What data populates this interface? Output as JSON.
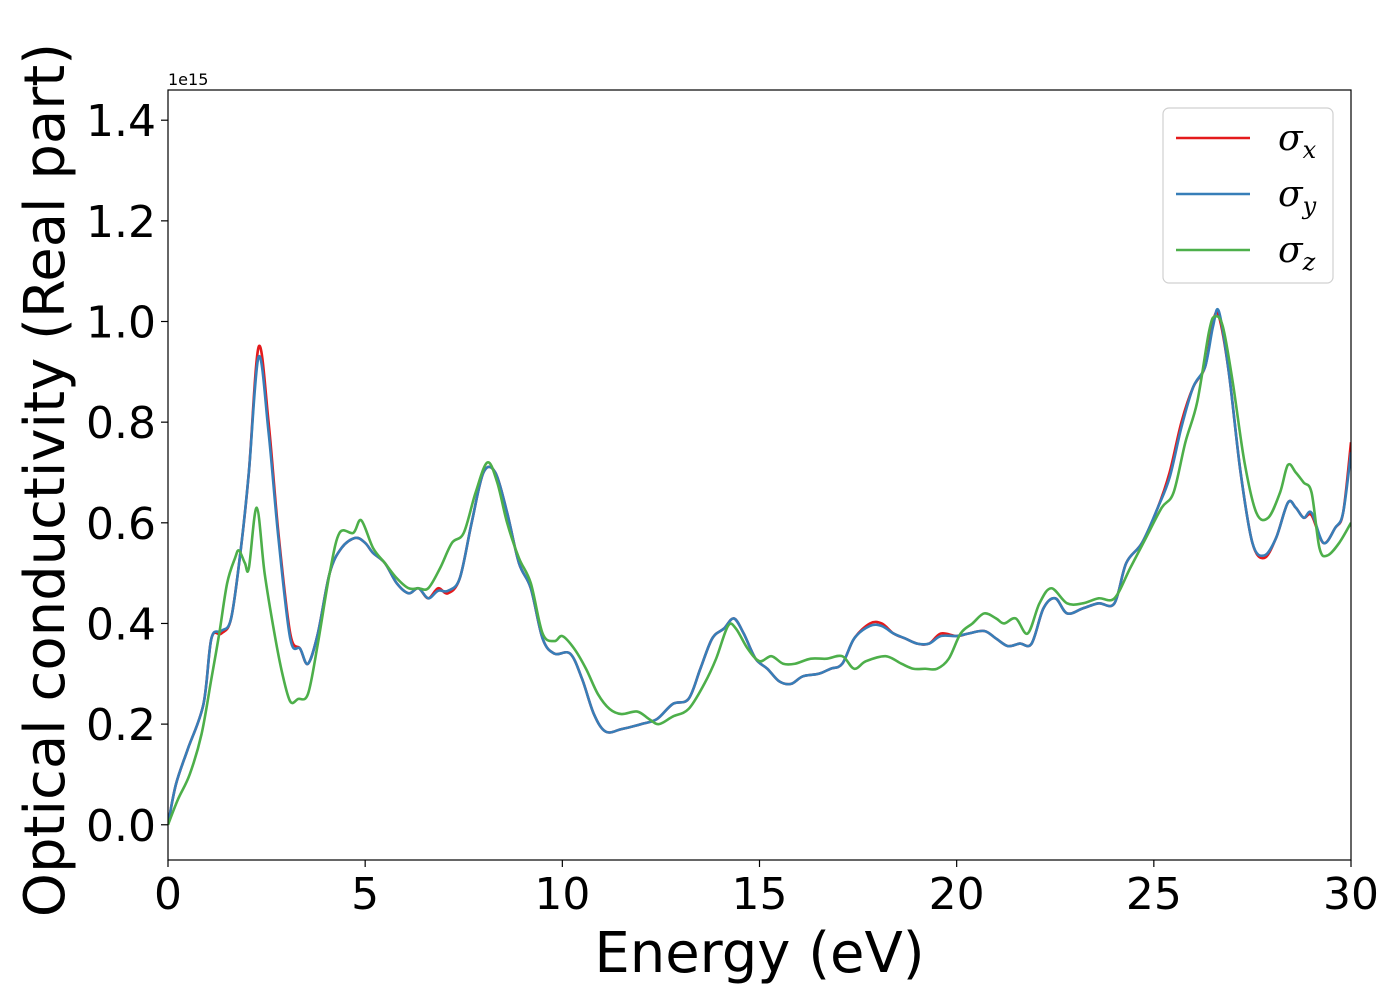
{
  "chart_data": {
    "type": "line",
    "xlabel": "Energy (eV)",
    "ylabel": "Optical conductivity (Real part)",
    "y_offset_label": "1e15",
    "xlim": [
      0,
      30
    ],
    "ylim": [
      -0.07,
      1.46
    ],
    "xticks": [
      0,
      5,
      10,
      15,
      20,
      25,
      30
    ],
    "xtick_labels": [
      "0",
      "5",
      "10",
      "15",
      "20",
      "25",
      "30"
    ],
    "yticks": [
      0.0,
      0.2,
      0.4,
      0.6,
      0.8,
      1.0,
      1.2,
      1.4
    ],
    "ytick_labels": [
      "0.0",
      "0.2",
      "0.4",
      "0.6",
      "0.8",
      "1.0",
      "1.2",
      "1.4"
    ],
    "legend_position": "top-right",
    "grid": false,
    "series": [
      {
        "name": "σx",
        "symbol": "σ",
        "subscript": "x",
        "color": "#e41a1c",
        "points": [
          [
            0,
            0.0
          ],
          [
            0.2,
            0.08
          ],
          [
            0.5,
            0.15
          ],
          [
            0.9,
            0.24
          ],
          [
            1.1,
            0.37
          ],
          [
            1.35,
            0.38
          ],
          [
            1.6,
            0.41
          ],
          [
            1.85,
            0.55
          ],
          [
            2.05,
            0.7
          ],
          [
            2.3,
            0.95
          ],
          [
            2.55,
            0.8
          ],
          [
            2.8,
            0.58
          ],
          [
            3.1,
            0.38
          ],
          [
            3.35,
            0.35
          ],
          [
            3.55,
            0.32
          ],
          [
            3.8,
            0.38
          ],
          [
            4.1,
            0.5
          ],
          [
            4.4,
            0.55
          ],
          [
            4.75,
            0.57
          ],
          [
            5.0,
            0.56
          ],
          [
            5.2,
            0.54
          ],
          [
            5.5,
            0.52
          ],
          [
            5.8,
            0.48
          ],
          [
            6.1,
            0.46
          ],
          [
            6.35,
            0.47
          ],
          [
            6.6,
            0.45
          ],
          [
            6.85,
            0.47
          ],
          [
            7.1,
            0.46
          ],
          [
            7.4,
            0.49
          ],
          [
            7.7,
            0.6
          ],
          [
            8.0,
            0.7
          ],
          [
            8.3,
            0.7
          ],
          [
            8.6,
            0.62
          ],
          [
            8.9,
            0.52
          ],
          [
            9.2,
            0.47
          ],
          [
            9.5,
            0.37
          ],
          [
            9.8,
            0.34
          ],
          [
            10.2,
            0.34
          ],
          [
            10.5,
            0.29
          ],
          [
            10.8,
            0.22
          ],
          [
            11.1,
            0.185
          ],
          [
            11.5,
            0.19
          ],
          [
            12.0,
            0.2
          ],
          [
            12.4,
            0.21
          ],
          [
            12.8,
            0.24
          ],
          [
            13.2,
            0.25
          ],
          [
            13.5,
            0.31
          ],
          [
            13.8,
            0.37
          ],
          [
            14.1,
            0.39
          ],
          [
            14.35,
            0.41
          ],
          [
            14.6,
            0.38
          ],
          [
            14.9,
            0.33
          ],
          [
            15.2,
            0.31
          ],
          [
            15.5,
            0.285
          ],
          [
            15.8,
            0.28
          ],
          [
            16.1,
            0.295
          ],
          [
            16.5,
            0.3
          ],
          [
            16.8,
            0.31
          ],
          [
            17.1,
            0.32
          ],
          [
            17.4,
            0.37
          ],
          [
            17.8,
            0.4
          ],
          [
            18.1,
            0.4
          ],
          [
            18.4,
            0.38
          ],
          [
            18.7,
            0.37
          ],
          [
            19.0,
            0.36
          ],
          [
            19.3,
            0.36
          ],
          [
            19.6,
            0.38
          ],
          [
            20.0,
            0.375
          ],
          [
            20.3,
            0.38
          ],
          [
            20.7,
            0.385
          ],
          [
            21.0,
            0.37
          ],
          [
            21.3,
            0.355
          ],
          [
            21.6,
            0.36
          ],
          [
            21.9,
            0.36
          ],
          [
            22.2,
            0.43
          ],
          [
            22.5,
            0.45
          ],
          [
            22.8,
            0.42
          ],
          [
            23.2,
            0.43
          ],
          [
            23.6,
            0.44
          ],
          [
            24.0,
            0.44
          ],
          [
            24.3,
            0.52
          ],
          [
            24.7,
            0.56
          ],
          [
            25.1,
            0.63
          ],
          [
            25.4,
            0.7
          ],
          [
            25.7,
            0.8
          ],
          [
            26.0,
            0.87
          ],
          [
            26.3,
            0.91
          ],
          [
            26.5,
            1.0
          ],
          [
            26.65,
            1.01
          ],
          [
            26.9,
            0.9
          ],
          [
            27.2,
            0.7
          ],
          [
            27.5,
            0.56
          ],
          [
            27.8,
            0.53
          ],
          [
            28.1,
            0.57
          ],
          [
            28.4,
            0.64
          ],
          [
            28.6,
            0.63
          ],
          [
            28.8,
            0.61
          ],
          [
            29.0,
            0.615
          ],
          [
            29.3,
            0.56
          ],
          [
            29.6,
            0.59
          ],
          [
            29.8,
            0.62
          ],
          [
            30.0,
            0.76
          ]
        ]
      },
      {
        "name": "σy",
        "symbol": "σ",
        "subscript": "y",
        "color": "#377eb8",
        "points": [
          [
            0,
            0.0
          ],
          [
            0.2,
            0.08
          ],
          [
            0.5,
            0.15
          ],
          [
            0.9,
            0.24
          ],
          [
            1.1,
            0.37
          ],
          [
            1.35,
            0.385
          ],
          [
            1.6,
            0.41
          ],
          [
            1.85,
            0.55
          ],
          [
            2.05,
            0.7
          ],
          [
            2.3,
            0.93
          ],
          [
            2.55,
            0.78
          ],
          [
            2.8,
            0.57
          ],
          [
            3.1,
            0.37
          ],
          [
            3.35,
            0.35
          ],
          [
            3.55,
            0.32
          ],
          [
            3.8,
            0.38
          ],
          [
            4.1,
            0.5
          ],
          [
            4.4,
            0.55
          ],
          [
            4.75,
            0.57
          ],
          [
            5.0,
            0.56
          ],
          [
            5.2,
            0.54
          ],
          [
            5.5,
            0.52
          ],
          [
            5.8,
            0.48
          ],
          [
            6.1,
            0.46
          ],
          [
            6.35,
            0.47
          ],
          [
            6.6,
            0.45
          ],
          [
            6.85,
            0.465
          ],
          [
            7.1,
            0.465
          ],
          [
            7.4,
            0.49
          ],
          [
            7.7,
            0.6
          ],
          [
            8.0,
            0.7
          ],
          [
            8.3,
            0.7
          ],
          [
            8.6,
            0.62
          ],
          [
            8.9,
            0.52
          ],
          [
            9.2,
            0.47
          ],
          [
            9.5,
            0.37
          ],
          [
            9.8,
            0.34
          ],
          [
            10.2,
            0.34
          ],
          [
            10.5,
            0.29
          ],
          [
            10.8,
            0.22
          ],
          [
            11.1,
            0.185
          ],
          [
            11.5,
            0.19
          ],
          [
            12.0,
            0.2
          ],
          [
            12.4,
            0.21
          ],
          [
            12.8,
            0.24
          ],
          [
            13.2,
            0.25
          ],
          [
            13.5,
            0.31
          ],
          [
            13.8,
            0.37
          ],
          [
            14.1,
            0.39
          ],
          [
            14.35,
            0.41
          ],
          [
            14.6,
            0.38
          ],
          [
            14.9,
            0.33
          ],
          [
            15.2,
            0.31
          ],
          [
            15.5,
            0.285
          ],
          [
            15.8,
            0.28
          ],
          [
            16.1,
            0.295
          ],
          [
            16.5,
            0.3
          ],
          [
            16.8,
            0.31
          ],
          [
            17.1,
            0.32
          ],
          [
            17.4,
            0.37
          ],
          [
            17.8,
            0.395
          ],
          [
            18.1,
            0.395
          ],
          [
            18.4,
            0.38
          ],
          [
            18.7,
            0.37
          ],
          [
            19.0,
            0.36
          ],
          [
            19.3,
            0.36
          ],
          [
            19.6,
            0.375
          ],
          [
            20.0,
            0.375
          ],
          [
            20.3,
            0.38
          ],
          [
            20.7,
            0.385
          ],
          [
            21.0,
            0.37
          ],
          [
            21.3,
            0.355
          ],
          [
            21.6,
            0.36
          ],
          [
            21.9,
            0.36
          ],
          [
            22.2,
            0.43
          ],
          [
            22.5,
            0.45
          ],
          [
            22.8,
            0.42
          ],
          [
            23.2,
            0.43
          ],
          [
            23.6,
            0.44
          ],
          [
            24.0,
            0.44
          ],
          [
            24.3,
            0.52
          ],
          [
            24.7,
            0.56
          ],
          [
            25.1,
            0.63
          ],
          [
            25.4,
            0.69
          ],
          [
            25.7,
            0.79
          ],
          [
            26.0,
            0.87
          ],
          [
            26.3,
            0.91
          ],
          [
            26.5,
            0.99
          ],
          [
            26.65,
            1.02
          ],
          [
            26.9,
            0.9
          ],
          [
            27.2,
            0.7
          ],
          [
            27.5,
            0.56
          ],
          [
            27.8,
            0.535
          ],
          [
            28.1,
            0.57
          ],
          [
            28.4,
            0.64
          ],
          [
            28.6,
            0.63
          ],
          [
            28.8,
            0.61
          ],
          [
            29.0,
            0.62
          ],
          [
            29.3,
            0.56
          ],
          [
            29.6,
            0.59
          ],
          [
            29.8,
            0.62
          ],
          [
            30.0,
            0.74
          ]
        ]
      },
      {
        "name": "σz",
        "symbol": "σ",
        "subscript": "z",
        "color": "#4daf4a",
        "points": [
          [
            0,
            0.0
          ],
          [
            0.25,
            0.05
          ],
          [
            0.55,
            0.1
          ],
          [
            0.85,
            0.18
          ],
          [
            1.1,
            0.29
          ],
          [
            1.3,
            0.38
          ],
          [
            1.5,
            0.48
          ],
          [
            1.7,
            0.53
          ],
          [
            1.8,
            0.545
          ],
          [
            1.95,
            0.52
          ],
          [
            2.05,
            0.51
          ],
          [
            2.25,
            0.63
          ],
          [
            2.45,
            0.5
          ],
          [
            2.7,
            0.38
          ],
          [
            2.9,
            0.3
          ],
          [
            3.1,
            0.245
          ],
          [
            3.3,
            0.25
          ],
          [
            3.55,
            0.26
          ],
          [
            3.8,
            0.36
          ],
          [
            4.1,
            0.5
          ],
          [
            4.35,
            0.58
          ],
          [
            4.7,
            0.58
          ],
          [
            4.9,
            0.605
          ],
          [
            5.2,
            0.55
          ],
          [
            5.5,
            0.52
          ],
          [
            5.8,
            0.49
          ],
          [
            6.1,
            0.47
          ],
          [
            6.35,
            0.47
          ],
          [
            6.6,
            0.47
          ],
          [
            6.9,
            0.51
          ],
          [
            7.2,
            0.56
          ],
          [
            7.5,
            0.58
          ],
          [
            7.8,
            0.66
          ],
          [
            8.1,
            0.72
          ],
          [
            8.35,
            0.68
          ],
          [
            8.6,
            0.6
          ],
          [
            8.9,
            0.53
          ],
          [
            9.2,
            0.48
          ],
          [
            9.5,
            0.38
          ],
          [
            9.8,
            0.365
          ],
          [
            10.0,
            0.375
          ],
          [
            10.3,
            0.35
          ],
          [
            10.6,
            0.31
          ],
          [
            10.9,
            0.26
          ],
          [
            11.2,
            0.23
          ],
          [
            11.5,
            0.22
          ],
          [
            11.9,
            0.225
          ],
          [
            12.2,
            0.21
          ],
          [
            12.45,
            0.2
          ],
          [
            12.8,
            0.215
          ],
          [
            13.2,
            0.23
          ],
          [
            13.6,
            0.28
          ],
          [
            13.9,
            0.33
          ],
          [
            14.2,
            0.395
          ],
          [
            14.4,
            0.39
          ],
          [
            14.7,
            0.35
          ],
          [
            15.0,
            0.325
          ],
          [
            15.3,
            0.335
          ],
          [
            15.6,
            0.32
          ],
          [
            15.9,
            0.32
          ],
          [
            16.3,
            0.33
          ],
          [
            16.7,
            0.33
          ],
          [
            17.1,
            0.335
          ],
          [
            17.4,
            0.31
          ],
          [
            17.7,
            0.325
          ],
          [
            18.2,
            0.335
          ],
          [
            18.6,
            0.32
          ],
          [
            18.9,
            0.31
          ],
          [
            19.2,
            0.31
          ],
          [
            19.5,
            0.31
          ],
          [
            19.8,
            0.33
          ],
          [
            20.1,
            0.38
          ],
          [
            20.4,
            0.4
          ],
          [
            20.7,
            0.42
          ],
          [
            21.0,
            0.41
          ],
          [
            21.2,
            0.4
          ],
          [
            21.5,
            0.41
          ],
          [
            21.8,
            0.38
          ],
          [
            22.1,
            0.44
          ],
          [
            22.4,
            0.47
          ],
          [
            22.8,
            0.44
          ],
          [
            23.2,
            0.44
          ],
          [
            23.6,
            0.45
          ],
          [
            24.0,
            0.45
          ],
          [
            24.4,
            0.51
          ],
          [
            24.8,
            0.57
          ],
          [
            25.2,
            0.63
          ],
          [
            25.5,
            0.66
          ],
          [
            25.8,
            0.76
          ],
          [
            26.1,
            0.84
          ],
          [
            26.4,
            0.98
          ],
          [
            26.55,
            1.01
          ],
          [
            26.75,
            0.99
          ],
          [
            27.0,
            0.88
          ],
          [
            27.3,
            0.72
          ],
          [
            27.6,
            0.62
          ],
          [
            27.9,
            0.61
          ],
          [
            28.2,
            0.66
          ],
          [
            28.4,
            0.715
          ],
          [
            28.6,
            0.7
          ],
          [
            28.8,
            0.68
          ],
          [
            29.0,
            0.66
          ],
          [
            29.2,
            0.55
          ],
          [
            29.4,
            0.535
          ],
          [
            29.7,
            0.56
          ],
          [
            30.0,
            0.6
          ]
        ]
      }
    ]
  }
}
